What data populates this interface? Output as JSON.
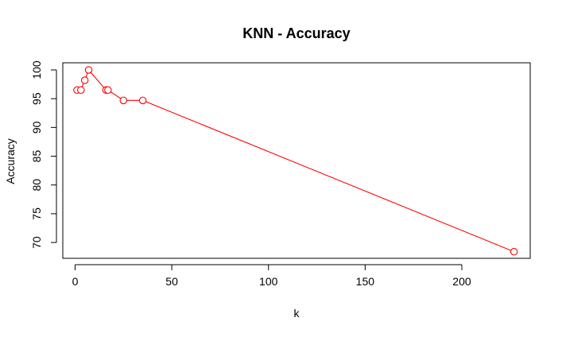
{
  "chart_data": {
    "type": "line",
    "title": "KNN - Accuracy",
    "xlabel": "k",
    "ylabel": "Accuracy",
    "xlim": [
      -6.36,
      235.36
    ],
    "ylim": [
      67.25,
      101.24
    ],
    "x_ticks": [
      0,
      50,
      100,
      150,
      200
    ],
    "y_ticks": [
      70,
      75,
      80,
      85,
      90,
      95,
      100
    ],
    "grid": false,
    "series": [
      {
        "name": "",
        "color": "#ff0000",
        "marker": "open-circle",
        "x": [
          1,
          3,
          5,
          7,
          16,
          17,
          25,
          35,
          227
        ],
        "y": [
          96.5,
          96.5,
          98.2,
          100.0,
          96.5,
          96.5,
          94.7,
          94.7,
          68.4
        ]
      }
    ]
  }
}
